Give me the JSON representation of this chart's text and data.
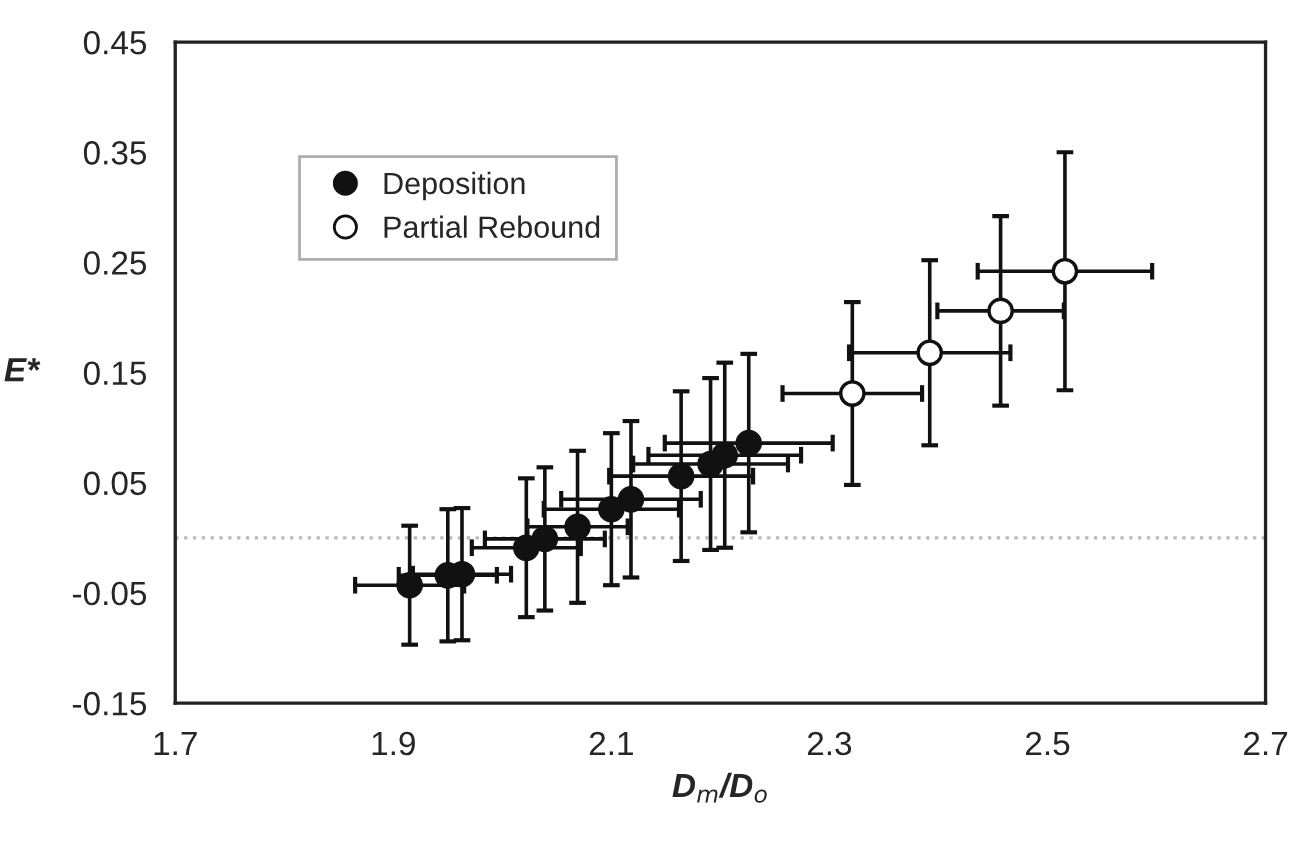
{
  "chart_data": {
    "type": "scatter",
    "xlabel": "D$_{m}$/D$_{o}$",
    "ylabel": "E*",
    "xlim": [
      1.7,
      2.7
    ],
    "xticks": [
      1.7,
      1.9,
      2.1,
      2.3,
      2.5,
      2.7
    ],
    "ylim": [
      -0.15,
      0.45
    ],
    "yticks": [
      -0.15,
      -0.05,
      0.05,
      0.15,
      0.25,
      0.35,
      0.45
    ],
    "grid": false,
    "legend": "top left",
    "marker": "circle",
    "ref_lines": [
      {
        "axis": "y",
        "value": 0,
        "color": "#bbbbbb",
        "line_style": "dotted"
      }
    ],
    "series": [
      {
        "name": "Deposition",
        "color": "#111111",
        "x": [
          1.915,
          1.95,
          1.963,
          2.022,
          2.039,
          2.069,
          2.1,
          2.118,
          2.164,
          2.191,
          2.204,
          2.226
        ],
        "values": [
          -0.043,
          -0.034,
          -0.033,
          -0.009,
          -0.001,
          0.01,
          0.026,
          0.035,
          0.056,
          0.067,
          0.075,
          0.086
        ],
        "errors": [
          0.054,
          0.06,
          0.06,
          0.063,
          0.065,
          0.069,
          0.069,
          0.071,
          0.077,
          0.078,
          0.084,
          0.081
        ],
        "xerrors": [
          0.05,
          0.045,
          0.045,
          0.05,
          0.055,
          0.046,
          0.062,
          0.064,
          0.066,
          0.071,
          0.07,
          0.077
        ]
      },
      {
        "name": "Partial Rebound",
        "color": "#ffffff",
        "x": [
          2.321,
          2.392,
          2.457,
          2.516
        ],
        "values": [
          0.131,
          0.168,
          0.206,
          0.242
        ],
        "errors": [
          0.083,
          0.084,
          0.086,
          0.108
        ],
        "xerrors": [
          0.064,
          0.074,
          0.058,
          0.08
        ]
      }
    ]
  }
}
